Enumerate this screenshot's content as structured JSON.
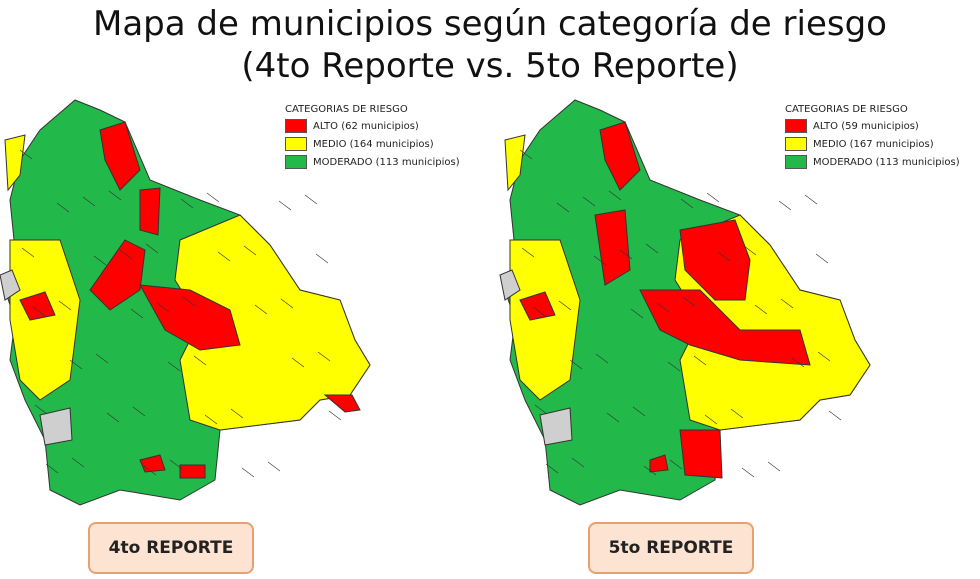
{
  "title": [
    "Mapa de municipios según categoría de riesgo",
    "(4to Reporte vs. 5to Reporte)"
  ],
  "maps": [
    {
      "legend_title": "CATEGORIAS DE RIESGO",
      "legend": [
        {
          "label": "ALTO (62 municipios)",
          "color": "#ff0000"
        },
        {
          "label": "MEDIO (164 municipios)",
          "color": "#ffff00"
        },
        {
          "label": "MODERADO (113 municipios)",
          "color": "#22b94a"
        }
      ],
      "report_label": "4to REPORTE"
    },
    {
      "legend_title": "CATEGORIAS DE RIESGO",
      "legend": [
        {
          "label": "ALTO (59 municipios)",
          "color": "#ff0000"
        },
        {
          "label": "MEDIO (167 municipios)",
          "color": "#ffff00"
        },
        {
          "label": "MODERADO (113 municipios)",
          "color": "#22b94a"
        }
      ],
      "report_label": "5to REPORTE"
    }
  ]
}
